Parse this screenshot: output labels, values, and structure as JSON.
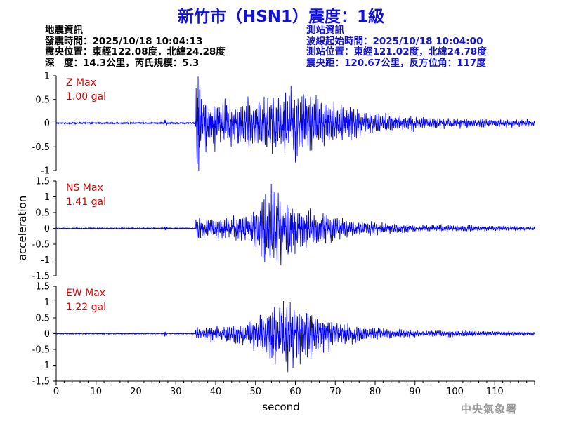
{
  "title": "新竹市（HSN1）震度：1級",
  "earthquake_info": {
    "heading": "地震資訊",
    "origin_time": "發震時間：2025/10/18 10:04:13",
    "epicenter": "震央位置：東經122.08度，北緯24.28度",
    "depth_magnitude": "深　度：14.3公里，芮氏規模：5.3"
  },
  "station_info": {
    "heading": "測站資訊",
    "waveform_start": "波線起始時間：2025/10/18 10:04:00",
    "station_location": "測站位置：東經121.02度，北緯24.78度",
    "distance_azimuth": "震央距：120.67公里，反方位角：117度"
  },
  "agency": "中央氣象署",
  "colors": {
    "title": "#1010d8",
    "station_info": "#1414d0",
    "trace": "#0000ff",
    "max_label": "#e00000"
  },
  "chart_data": {
    "type": "line",
    "xlabel": "second",
    "ylabel": "acceleration",
    "xlim": [
      0,
      120
    ],
    "x_ticks": [
      0,
      10,
      20,
      30,
      40,
      50,
      60,
      70,
      80,
      90,
      100,
      110
    ],
    "grid": false,
    "panels": [
      {
        "name": "Z",
        "max_label": "Z Max",
        "max_value": "1.00 gal",
        "ylim": [
          -1,
          1
        ],
        "y_ticks": [
          -1,
          -0.5,
          0,
          0.5,
          1
        ],
        "onset": 35,
        "noise": 0.012,
        "peak": 1.0,
        "envelope": [
          [
            35,
            0.95
          ],
          [
            37,
            0.6
          ],
          [
            42,
            0.45
          ],
          [
            48,
            0.45
          ],
          [
            54,
            0.5
          ],
          [
            60,
            0.7
          ],
          [
            64,
            0.55
          ],
          [
            70,
            0.38
          ],
          [
            80,
            0.2
          ],
          [
            95,
            0.1
          ],
          [
            120,
            0.06
          ]
        ]
      },
      {
        "name": "NS",
        "max_label": "NS Max",
        "max_value": "1.41 gal",
        "ylim": [
          -1.5,
          1.5
        ],
        "y_ticks": [
          -1.5,
          -1,
          -0.5,
          0,
          0.5,
          1,
          1.5
        ],
        "onset": 35,
        "noise": 0.012,
        "peak": 1.41,
        "envelope": [
          [
            35,
            0.35
          ],
          [
            40,
            0.3
          ],
          [
            45,
            0.4
          ],
          [
            50,
            0.6
          ],
          [
            54,
            1.35
          ],
          [
            58,
            1.0
          ],
          [
            62,
            0.7
          ],
          [
            68,
            0.45
          ],
          [
            75,
            0.25
          ],
          [
            90,
            0.12
          ],
          [
            120,
            0.06
          ]
        ]
      },
      {
        "name": "EW",
        "max_label": "EW Max",
        "max_value": "1.22 gal",
        "ylim": [
          -1.5,
          1.5
        ],
        "y_ticks": [
          -1.5,
          -1,
          -0.5,
          0,
          0.5,
          1,
          1.5
        ],
        "onset": 35,
        "noise": 0.012,
        "peak": 1.22,
        "envelope": [
          [
            35,
            0.2
          ],
          [
            40,
            0.25
          ],
          [
            46,
            0.4
          ],
          [
            52,
            0.7
          ],
          [
            56,
            1.2
          ],
          [
            60,
            1.0
          ],
          [
            65,
            0.75
          ],
          [
            70,
            0.4
          ],
          [
            78,
            0.22
          ],
          [
            90,
            0.12
          ],
          [
            120,
            0.06
          ]
        ]
      }
    ]
  }
}
